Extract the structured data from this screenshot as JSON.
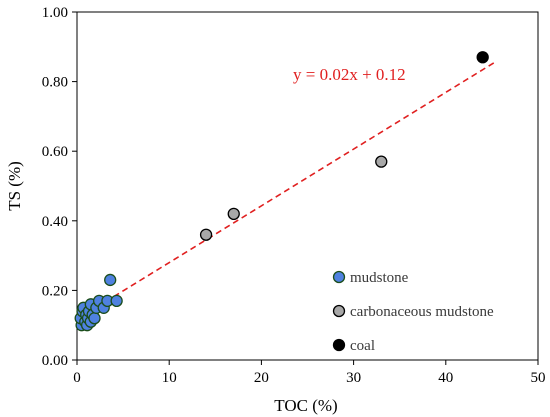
{
  "chart_data": {
    "type": "scatter",
    "title": "",
    "xlabel": "TOC (%)",
    "ylabel": "TS (%)",
    "xlim": [
      0,
      50
    ],
    "ylim": [
      0,
      1.0
    ],
    "x_ticks": [
      0,
      10,
      20,
      30,
      40,
      50
    ],
    "x_tick_labels": [
      "0",
      "10",
      "20",
      "30",
      "40",
      "50"
    ],
    "y_ticks": [
      0,
      0.2,
      0.4,
      0.6,
      0.8,
      1.0
    ],
    "y_tick_labels": [
      "0.00",
      "0.20",
      "0.40",
      "0.60",
      "0.80",
      "1.00"
    ],
    "grid": false,
    "legend_position": "bottom-right",
    "series": [
      {
        "name": "mudstone",
        "color": "#4f81e0",
        "edge_color": "#1b4d1b",
        "points": [
          {
            "x": 0.5,
            "y": 0.1
          },
          {
            "x": 0.4,
            "y": 0.12
          },
          {
            "x": 0.6,
            "y": 0.14
          },
          {
            "x": 0.7,
            "y": 0.15
          },
          {
            "x": 0.9,
            "y": 0.11
          },
          {
            "x": 1.0,
            "y": 0.13
          },
          {
            "x": 1.1,
            "y": 0.1
          },
          {
            "x": 1.2,
            "y": 0.12
          },
          {
            "x": 1.3,
            "y": 0.14
          },
          {
            "x": 1.5,
            "y": 0.11
          },
          {
            "x": 1.5,
            "y": 0.16
          },
          {
            "x": 1.7,
            "y": 0.13
          },
          {
            "x": 1.9,
            "y": 0.12
          },
          {
            "x": 2.1,
            "y": 0.15
          },
          {
            "x": 2.4,
            "y": 0.17
          },
          {
            "x": 2.9,
            "y": 0.15
          },
          {
            "x": 3.3,
            "y": 0.17
          },
          {
            "x": 3.6,
            "y": 0.23
          },
          {
            "x": 4.3,
            "y": 0.17
          }
        ]
      },
      {
        "name": "carbonaceous mudstone",
        "color": "#a8a8a8",
        "edge_color": "#000000",
        "points": [
          {
            "x": 14.0,
            "y": 0.36
          },
          {
            "x": 17.0,
            "y": 0.42
          },
          {
            "x": 33.0,
            "y": 0.57
          }
        ]
      },
      {
        "name": "coal",
        "color": "#000000",
        "edge_color": "#000000",
        "points": [
          {
            "x": 44.0,
            "y": 0.87
          }
        ]
      }
    ],
    "trendline": {
      "label": "y = 0.02x + 0.12",
      "slope": 0.0163,
      "intercept": 0.117,
      "x_range": [
        4.0,
        45.5
      ],
      "color": "#e02020"
    }
  }
}
